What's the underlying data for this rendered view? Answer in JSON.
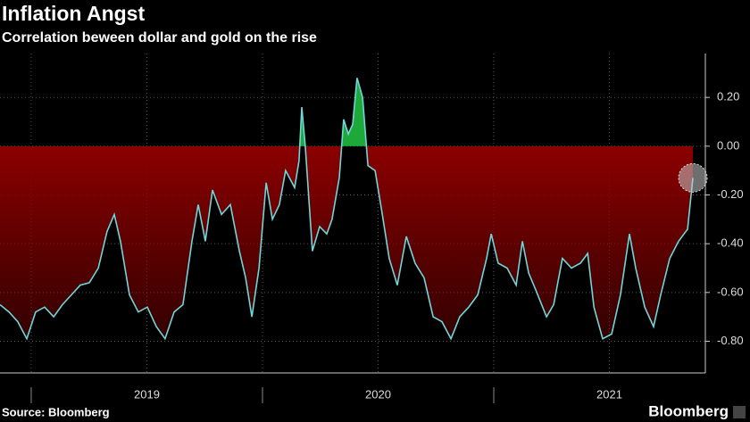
{
  "chart_data": {
    "type": "line",
    "title": "Inflation Angst",
    "subtitle": "Correlation beween dollar and gold on the rise",
    "source": "Source: Bloomberg",
    "brand": "Bloomberg",
    "color": "#6fd6da",
    "fill_negative": "#8b0000",
    "fill_positive": "#1fa83a",
    "grid": true,
    "x": [
      2018.865,
      2018.904,
      2018.942,
      2018.981,
      2019.019,
      2019.058,
      2019.097,
      2019.135,
      2019.174,
      2019.212,
      2019.251,
      2019.29,
      2019.328,
      2019.359,
      2019.386,
      2019.425,
      2019.463,
      2019.502,
      2019.541,
      2019.579,
      2019.618,
      2019.656,
      2019.695,
      2019.722,
      2019.753,
      2019.784,
      2019.823,
      2019.861,
      2019.9,
      2019.927,
      2019.954,
      2019.985,
      2020.016,
      2020.043,
      2020.073,
      2020.1,
      2020.139,
      2020.158,
      2020.17,
      2020.185,
      2020.216,
      2020.247,
      2020.278,
      2020.301,
      2020.332,
      2020.351,
      2020.371,
      2020.39,
      2020.409,
      2020.433,
      2020.456,
      2020.487,
      2020.518,
      2020.548,
      2020.583,
      2020.622,
      2020.66,
      2020.699,
      2020.738,
      2020.776,
      2020.815,
      2020.853,
      2020.892,
      2020.931,
      2020.969,
      2020.989,
      2021.019,
      2021.058,
      2021.097,
      2021.124,
      2021.151,
      2021.182,
      2021.228,
      2021.259,
      2021.297,
      2021.336,
      2021.375,
      2021.406,
      2021.433,
      2021.471,
      2021.51,
      2021.548,
      2021.587,
      2021.614,
      2021.653,
      2021.691,
      2021.722,
      2021.761,
      2021.799,
      2021.838,
      2021.861
    ],
    "values": [
      -0.65,
      -0.68,
      -0.72,
      -0.79,
      -0.68,
      -0.66,
      -0.7,
      -0.65,
      -0.61,
      -0.57,
      -0.56,
      -0.5,
      -0.35,
      -0.28,
      -0.39,
      -0.61,
      -0.68,
      -0.66,
      -0.74,
      -0.79,
      -0.68,
      -0.65,
      -0.39,
      -0.24,
      -0.39,
      -0.18,
      -0.28,
      -0.24,
      -0.43,
      -0.54,
      -0.7,
      -0.5,
      -0.15,
      -0.3,
      -0.24,
      -0.1,
      -0.17,
      -0.06,
      0.16,
      0.0,
      -0.43,
      -0.33,
      -0.36,
      -0.3,
      -0.13,
      0.11,
      0.05,
      0.09,
      0.28,
      0.2,
      -0.08,
      -0.1,
      -0.28,
      -0.46,
      -0.57,
      -0.37,
      -0.48,
      -0.54,
      -0.7,
      -0.72,
      -0.79,
      -0.7,
      -0.66,
      -0.61,
      -0.46,
      -0.36,
      -0.48,
      -0.5,
      -0.57,
      -0.39,
      -0.52,
      -0.59,
      -0.7,
      -0.65,
      -0.46,
      -0.5,
      -0.48,
      -0.44,
      -0.66,
      -0.79,
      -0.77,
      -0.61,
      -0.36,
      -0.5,
      -0.66,
      -0.74,
      -0.61,
      -0.46,
      -0.39,
      -0.34,
      -0.13
    ],
    "xlim": [
      2018.865,
      2021.915
    ],
    "xticks": [
      {
        "value": 2019.5,
        "label": "2019"
      },
      {
        "value": 2020.5,
        "label": "2020"
      },
      {
        "value": 2021.5,
        "label": "2021"
      }
    ],
    "ylim": [
      -0.93,
      0.38
    ],
    "yticks": [
      {
        "value": 0.2,
        "label": "0.20"
      },
      {
        "value": 0,
        "label": "0.00"
      },
      {
        "value": -0.2,
        "label": "-0.20"
      },
      {
        "value": -0.4,
        "label": "-0.40"
      },
      {
        "value": -0.6,
        "label": "-0.60"
      },
      {
        "value": -0.8,
        "label": "-0.80"
      }
    ]
  }
}
